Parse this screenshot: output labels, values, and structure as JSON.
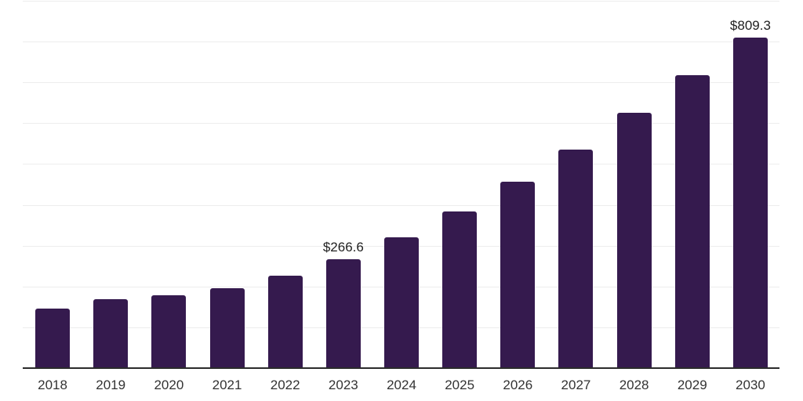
{
  "chart_data": {
    "type": "bar",
    "title": "",
    "xlabel": "",
    "ylabel": "",
    "categories": [
      "2018",
      "2019",
      "2020",
      "2021",
      "2022",
      "2023",
      "2024",
      "2025",
      "2026",
      "2027",
      "2028",
      "2029",
      "2030"
    ],
    "values": [
      145.2,
      168.4,
      177.8,
      195.4,
      226.0,
      266.6,
      320.2,
      383.3,
      456.2,
      536.3,
      625.4,
      716.8,
      809.3
    ],
    "visible_value_labels": [
      {
        "category": "2023",
        "text": "$266.6"
      },
      {
        "category": "2030",
        "text": "$809.3"
      }
    ],
    "value_prefix": "$",
    "ylim": [
      0,
      900
    ],
    "grid_step": 100,
    "grid": true,
    "legend": false,
    "y_tick_labels_visible": false
  },
  "colors": {
    "bar": "#351a4e",
    "axis": "#2b2b2b",
    "gridline": "#ededed",
    "value_label_text": "#1f1f1f",
    "tick_label_text": "#333333",
    "background": "#ffffff"
  }
}
